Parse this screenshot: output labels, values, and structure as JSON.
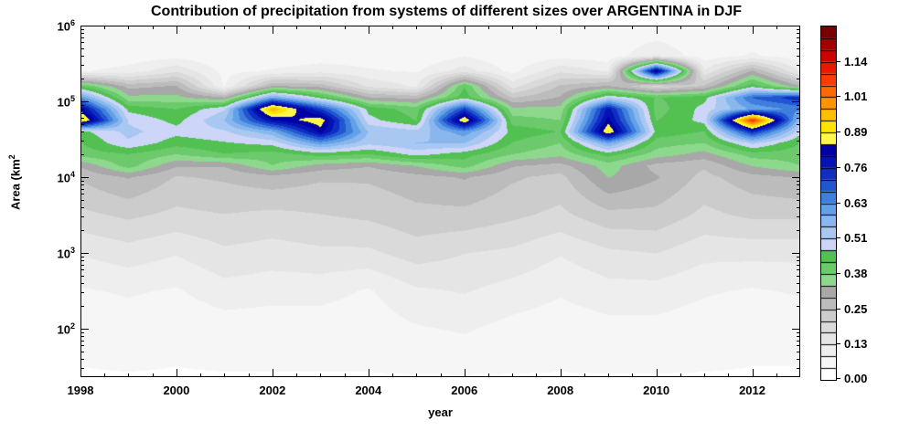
{
  "title": "Contribution of precipitation from systems of different sizes over ARGENTINA in DJF",
  "xlabel": "year",
  "ylabel": {
    "prefix": "Area (km",
    "exponent": "2"
  },
  "x_axis": {
    "range": [
      1998,
      2013
    ],
    "major_ticks": [
      1998,
      2000,
      2002,
      2004,
      2006,
      2008,
      2010,
      2012
    ],
    "minor_step": 0.5
  },
  "y_axis": {
    "log_range": [
      1.36,
      6.0
    ],
    "major_tick_exponents": [
      6,
      5,
      4,
      3,
      2
    ],
    "base_label": "10"
  },
  "colorbar": {
    "labels": [
      "0.00",
      "0.13",
      "0.25",
      "0.38",
      "0.51",
      "0.63",
      "0.76",
      "0.89",
      "1.01",
      "1.14"
    ],
    "value_max": 1.2667,
    "n_levels": 30,
    "level_colors": [
      "#FFFFFF",
      "#F6F6F6",
      "#EEEEEE",
      "#E5E5E5",
      "#DADADA",
      "#CCCCCC",
      "#BCBCBC",
      "#A8A8A8",
      "#8DD88D",
      "#6CCA6C",
      "#52C152",
      "#CDD5F8",
      "#A8C8F2",
      "#8AB6EE",
      "#62A0E8",
      "#3F7EDC",
      "#2256D0",
      "#0E2EC4",
      "#0414B4",
      "#0000A4",
      "#FFF84A",
      "#FFE400",
      "#FFBE00",
      "#FF9400",
      "#FF6A00",
      "#FB3C00",
      "#E91800",
      "#CC0300",
      "#A30000",
      "#7A0000"
    ]
  },
  "chart_data": {
    "type": "heatmap",
    "title": "Contribution of precipitation from systems of different sizes over ARGENTINA in DJF",
    "xlabel": "year",
    "ylabel": "Area (km2)",
    "x_range": [
      1998,
      2013
    ],
    "y_log_range": [
      1.36,
      6.0
    ],
    "value_step": 0.042222,
    "years": [
      1998,
      1999,
      2000,
      2001,
      2002,
      2003,
      2004,
      2005,
      2006,
      2007,
      2008,
      2009,
      2010,
      2011,
      2012,
      2013
    ],
    "log_area_rows": [
      6.0,
      5.6,
      5.4,
      5.2,
      5.05,
      4.9,
      4.75,
      4.6,
      4.45,
      4.3,
      4.15,
      4.0,
      3.5,
      3.0,
      2.5,
      2.0,
      1.36
    ],
    "values": [
      [
        0.05,
        0.05,
        0.05,
        0.05,
        0.05,
        0.05,
        0.05,
        0.05,
        0.05,
        0.05,
        0.05,
        0.05,
        0.05,
        0.05,
        0.05,
        0.05
      ],
      [
        0.05,
        0.06,
        0.07,
        0.05,
        0.05,
        0.06,
        0.06,
        0.05,
        0.08,
        0.05,
        0.07,
        0.06,
        0.12,
        0.06,
        0.09,
        0.06
      ],
      [
        0.08,
        0.1,
        0.16,
        0.07,
        0.09,
        0.11,
        0.09,
        0.08,
        0.15,
        0.07,
        0.16,
        0.12,
        0.85,
        0.13,
        0.3,
        0.12
      ],
      [
        0.42,
        0.28,
        0.3,
        0.08,
        0.3,
        0.28,
        0.16,
        0.12,
        0.42,
        0.15,
        0.26,
        0.3,
        0.2,
        0.26,
        0.45,
        0.3
      ],
      [
        0.62,
        0.35,
        0.35,
        0.3,
        0.6,
        0.45,
        0.3,
        0.28,
        0.45,
        0.25,
        0.3,
        0.5,
        0.42,
        0.45,
        0.68,
        0.75
      ],
      [
        0.82,
        0.45,
        0.42,
        0.5,
        0.97,
        0.72,
        0.45,
        0.4,
        0.72,
        0.35,
        0.35,
        0.78,
        0.4,
        0.48,
        0.6,
        0.65
      ],
      [
        0.93,
        0.5,
        0.45,
        0.55,
        0.8,
        0.88,
        0.48,
        0.42,
        0.9,
        0.4,
        0.38,
        0.82,
        0.42,
        0.48,
        1.1,
        0.55
      ],
      [
        0.45,
        0.52,
        0.48,
        0.5,
        0.58,
        0.82,
        0.55,
        0.52,
        0.62,
        0.45,
        0.42,
        0.9,
        0.45,
        0.42,
        0.75,
        0.48
      ],
      [
        0.42,
        0.5,
        0.44,
        0.46,
        0.48,
        0.62,
        0.52,
        0.55,
        0.55,
        0.42,
        0.38,
        0.6,
        0.4,
        0.38,
        0.52,
        0.42
      ],
      [
        0.4,
        0.42,
        0.38,
        0.42,
        0.4,
        0.44,
        0.42,
        0.48,
        0.44,
        0.38,
        0.35,
        0.44,
        0.36,
        0.32,
        0.4,
        0.4
      ],
      [
        0.3,
        0.4,
        0.3,
        0.3,
        0.38,
        0.32,
        0.3,
        0.34,
        0.4,
        0.3,
        0.28,
        0.36,
        0.28,
        0.26,
        0.34,
        0.38
      ],
      [
        0.26,
        0.3,
        0.25,
        0.26,
        0.28,
        0.26,
        0.26,
        0.28,
        0.3,
        0.26,
        0.24,
        0.34,
        0.3,
        0.24,
        0.28,
        0.3
      ],
      [
        0.2,
        0.22,
        0.2,
        0.21,
        0.2,
        0.21,
        0.22,
        0.24,
        0.24,
        0.22,
        0.2,
        0.24,
        0.24,
        0.2,
        0.22,
        0.22
      ],
      [
        0.13,
        0.15,
        0.13,
        0.16,
        0.15,
        0.16,
        0.16,
        0.19,
        0.17,
        0.16,
        0.13,
        0.16,
        0.17,
        0.14,
        0.14,
        0.14
      ],
      [
        0.08,
        0.09,
        0.08,
        0.11,
        0.1,
        0.1,
        0.08,
        0.12,
        0.13,
        0.11,
        0.09,
        0.11,
        0.11,
        0.09,
        0.08,
        0.09
      ],
      [
        0.05,
        0.06,
        0.05,
        0.06,
        0.06,
        0.06,
        0.06,
        0.08,
        0.09,
        0.07,
        0.06,
        0.07,
        0.07,
        0.06,
        0.05,
        0.05
      ],
      [
        0.04,
        0.04,
        0.04,
        0.04,
        0.04,
        0.04,
        0.04,
        0.04,
        0.04,
        0.04,
        0.04,
        0.04,
        0.04,
        0.04,
        0.04,
        0.04
      ]
    ]
  }
}
